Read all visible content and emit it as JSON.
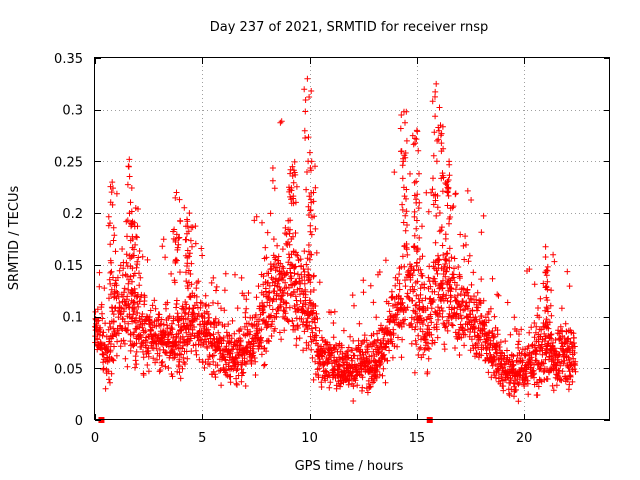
{
  "chart_data": {
    "type": "scatter",
    "title": "Day 237 of 2021, SRMTID for receiver rnsp",
    "xlabel": "GPS time / hours",
    "ylabel": "SRMTID / TECUs",
    "xlim": [
      0,
      24
    ],
    "ylim": [
      0,
      0.35
    ],
    "x_ticks": [
      0,
      5,
      10,
      15,
      20
    ],
    "x_tick_labels": [
      "0",
      "5",
      "10",
      "15",
      "20"
    ],
    "y_ticks": [
      0,
      0.05,
      0.1,
      0.15,
      0.2,
      0.25,
      0.3,
      0.35
    ],
    "y_tick_labels": [
      "0",
      "0.05",
      "0.1",
      "0.15",
      "0.2",
      "0.25",
      "0.3",
      "0.35"
    ],
    "grid": true,
    "marker": "+",
    "color": "#ff0000",
    "zero_value_markers_x": [
      0.3,
      15.6
    ],
    "series": [
      {
        "name": "SRMTID",
        "envelope_x": [
          0,
          0.5,
          1,
          1.5,
          2,
          2.5,
          3,
          3.5,
          4,
          4.5,
          5,
          5.5,
          6,
          6.5,
          7,
          7.5,
          8,
          8.5,
          9,
          9.5,
          10,
          10.5,
          11,
          11.5,
          12,
          12.5,
          13,
          13.5,
          14,
          14.5,
          15,
          15.5,
          16,
          16.5,
          17,
          17.5,
          18,
          18.5,
          19,
          19.5,
          20,
          20.5,
          21,
          21.5,
          22,
          22.4
        ],
        "center": [
          0.09,
          0.06,
          0.1,
          0.11,
          0.09,
          0.085,
          0.08,
          0.075,
          0.08,
          0.1,
          0.09,
          0.075,
          0.07,
          0.06,
          0.07,
          0.08,
          0.11,
          0.13,
          0.14,
          0.12,
          0.11,
          0.06,
          0.055,
          0.05,
          0.05,
          0.055,
          0.06,
          0.07,
          0.1,
          0.13,
          0.12,
          0.09,
          0.13,
          0.12,
          0.11,
          0.1,
          0.09,
          0.07,
          0.05,
          0.045,
          0.05,
          0.06,
          0.07,
          0.06,
          0.065,
          0.06
        ],
        "spread": [
          0.02,
          0.03,
          0.05,
          0.05,
          0.04,
          0.035,
          0.03,
          0.03,
          0.04,
          0.04,
          0.04,
          0.035,
          0.035,
          0.03,
          0.035,
          0.04,
          0.05,
          0.05,
          0.06,
          0.05,
          0.06,
          0.03,
          0.025,
          0.025,
          0.025,
          0.025,
          0.03,
          0.035,
          0.05,
          0.06,
          0.05,
          0.05,
          0.06,
          0.05,
          0.045,
          0.04,
          0.04,
          0.035,
          0.025,
          0.025,
          0.03,
          0.035,
          0.04,
          0.03,
          0.035,
          0.03
        ],
        "peaks": [
          {
            "x": 0.8,
            "y": 0.23
          },
          {
            "x": 1.6,
            "y": 0.252
          },
          {
            "x": 1.9,
            "y": 0.205
          },
          {
            "x": 3.8,
            "y": 0.22
          },
          {
            "x": 4.4,
            "y": 0.2
          },
          {
            "x": 9.2,
            "y": 0.245
          },
          {
            "x": 9.9,
            "y": 0.33
          },
          {
            "x": 10.1,
            "y": 0.25
          },
          {
            "x": 14.4,
            "y": 0.298
          },
          {
            "x": 15.0,
            "y": 0.28
          },
          {
            "x": 15.9,
            "y": 0.325
          },
          {
            "x": 16.1,
            "y": 0.285
          },
          {
            "x": 16.5,
            "y": 0.25
          },
          {
            "x": 21.1,
            "y": 0.148
          }
        ]
      }
    ]
  }
}
